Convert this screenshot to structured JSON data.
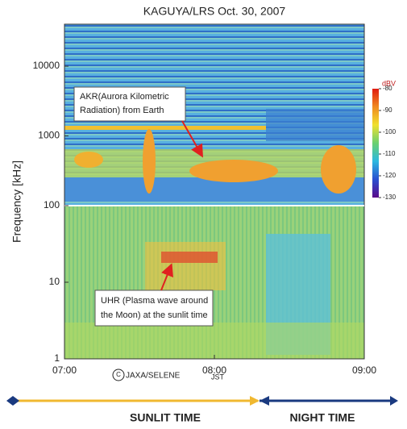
{
  "chart_data": {
    "type": "spectrogram",
    "title": "KAGUYA/LRS Oct. 30, 2007",
    "y_label": "Frequency  [kHz]",
    "x_label": "JST",
    "credit": "JAXA/SELENE",
    "xlim": [
      7,
      9
    ],
    "xticks": [
      {
        "value": 7,
        "label": "07:00"
      },
      {
        "value": 8,
        "label": "08:00"
      },
      {
        "value": 9,
        "label": "09:00"
      }
    ],
    "log_y": true,
    "panels": [
      {
        "ylim": [
          100,
          40000
        ],
        "yticks": [
          1000,
          10000
        ]
      },
      {
        "ylim": [
          1,
          100
        ],
        "yticks": [
          1,
          10,
          100
        ]
      }
    ],
    "colorbar": {
      "label": "dBV",
      "clim": [
        -130,
        -80
      ],
      "ticks": [
        -80,
        -90,
        -100,
        -110,
        -120,
        -130
      ],
      "colormap": [
        "#5a0a8a",
        "#2a4fd0",
        "#2cb8e0",
        "#6ad070",
        "#f0e030",
        "#f08a20",
        "#e01a10"
      ]
    },
    "annotations": [
      {
        "lines": [
          "AKR(Aurora Kilometric",
          "Radiation)  from Earth"
        ]
      },
      {
        "lines": [
          "UHR (Plasma wave around",
          "the Moon) at the sunlit time"
        ]
      }
    ],
    "periods": [
      "SUNLIT TIME",
      "NIGHT TIME"
    ]
  }
}
